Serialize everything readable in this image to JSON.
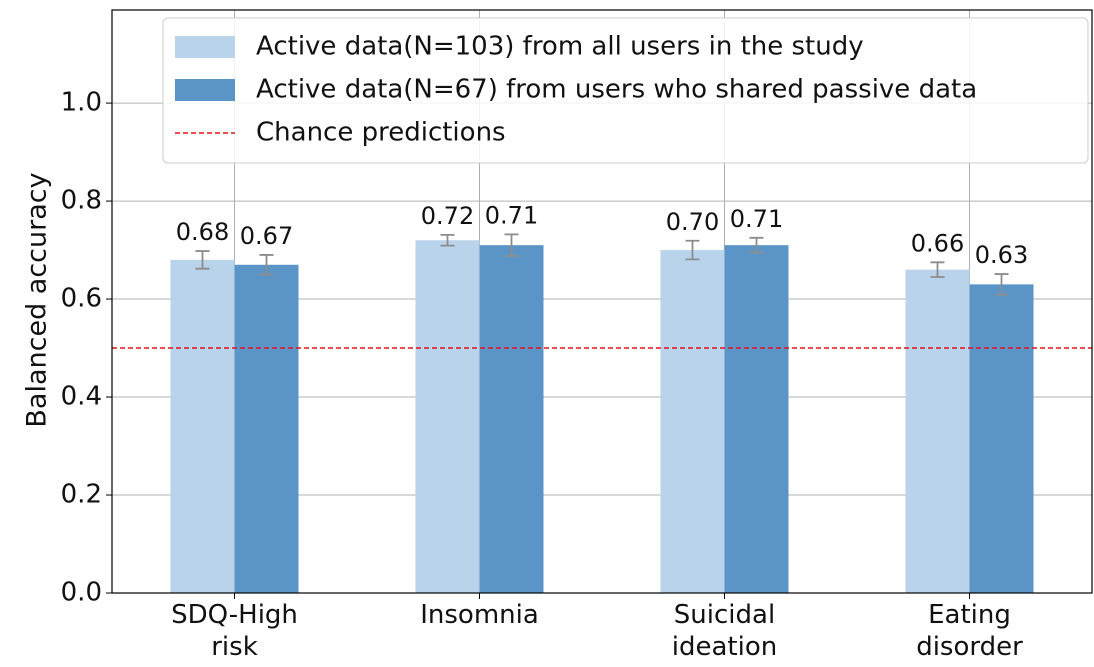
{
  "chart_data": {
    "type": "bar",
    "y_label": "Balanced accuracy",
    "categories": [
      "SDQ-High risk",
      "Insomnia",
      "Suicidal ideation",
      "Eating disorder"
    ],
    "series": [
      {
        "name": "Active data(N=103) from all users in the study",
        "color": "#b8d3ea",
        "values": [
          0.68,
          0.72,
          0.7,
          0.66
        ],
        "value_labels": [
          "0.68",
          "0.72",
          "0.70",
          "0.66"
        ],
        "errors": [
          0.018,
          0.011,
          0.019,
          0.015
        ]
      },
      {
        "name": "Active data(N=67) from users who shared passive data",
        "color": "#5b95c8",
        "values": [
          0.67,
          0.71,
          0.71,
          0.63
        ],
        "value_labels": [
          "0.67",
          "0.71",
          "0.71",
          "0.63"
        ],
        "errors": [
          0.02,
          0.022,
          0.015,
          0.021
        ]
      }
    ],
    "reference_line": {
      "name": "Chance predictions",
      "value": 0.5,
      "color": "#e3101c"
    },
    "error_color": "#8c8c8c",
    "ylim": [
      0,
      1.19
    ],
    "yticks": [
      {
        "value": 0,
        "label": "0.0"
      },
      {
        "value": 0.2,
        "label": "0.2"
      },
      {
        "value": 0.4,
        "label": "0.4"
      },
      {
        "value": 0.6,
        "label": "0.6"
      },
      {
        "value": 0.8,
        "label": "0.8"
      },
      {
        "value": 1.0,
        "label": "1.0"
      }
    ],
    "grid": true,
    "legend": "top-right"
  }
}
